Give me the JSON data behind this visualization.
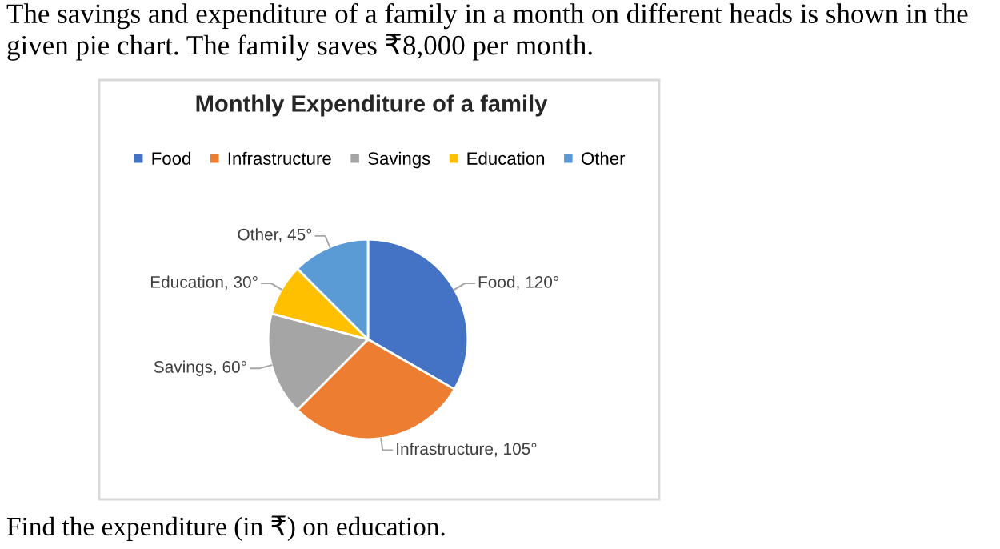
{
  "chart_data": {
    "type": "pie",
    "title": "Monthly Expenditure of a family",
    "categories": [
      "Food",
      "Infrastructure",
      "Savings",
      "Education",
      "Other"
    ],
    "values": [
      120,
      105,
      60,
      30,
      45
    ],
    "value_labels": [
      "Food, 120°",
      "Infrastructure, 105°",
      "Savings, 60°",
      "Education, 30°",
      "Other, 45°"
    ],
    "colors": [
      "#4472c4",
      "#ed7d31",
      "#a5a5a5",
      "#ffc000",
      "#5b9bd5"
    ],
    "legend": "top",
    "annotations": [
      "The savings and expenditure of a family in a month on different heads is shown in the given pie chart. The family saves ₹8,000 per month.",
      "Find the expenditure (in ₹) on education."
    ]
  }
}
